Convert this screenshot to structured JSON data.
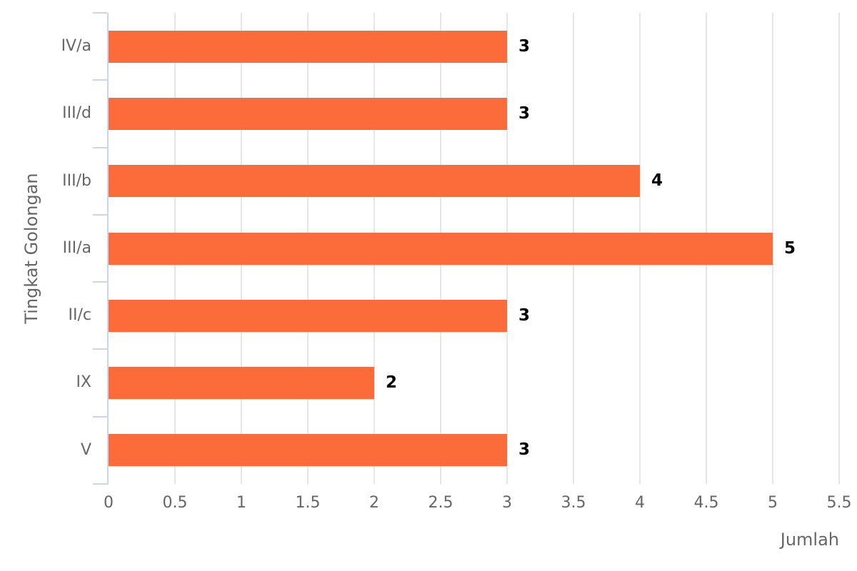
{
  "chart_data": {
    "type": "bar",
    "orientation": "horizontal",
    "title": "",
    "xlabel": "Jumlah",
    "ylabel": "Tingkat Golongan",
    "categories": [
      "IV/a",
      "III/d",
      "III/b",
      "III/a",
      "II/c",
      "IX",
      "V"
    ],
    "values": [
      3,
      3,
      4,
      5,
      3,
      2,
      3
    ],
    "data_labels": [
      "3",
      "3",
      "4",
      "5",
      "3",
      "2",
      "3"
    ],
    "xlim": [
      0,
      5.5
    ],
    "xticks": [
      {
        "value": 0,
        "label": "0"
      },
      {
        "value": 0.5,
        "label": "0.5"
      },
      {
        "value": 1,
        "label": "1"
      },
      {
        "value": 1.5,
        "label": "1.5"
      },
      {
        "value": 2,
        "label": "2"
      },
      {
        "value": 2.5,
        "label": "2.5"
      },
      {
        "value": 3,
        "label": "3"
      },
      {
        "value": 3.5,
        "label": "3.5"
      },
      {
        "value": 4,
        "label": "4"
      },
      {
        "value": 4.5,
        "label": "4.5"
      },
      {
        "value": 5,
        "label": "5"
      },
      {
        "value": 5.5,
        "label": "5.5"
      }
    ],
    "grid": true,
    "legend": false
  },
  "colors": {
    "bar": "#fc6c3b",
    "gridline": "#e6e6e6",
    "axis_line": "#ccd6eb",
    "label_text": "#666666",
    "data_label_text": "#000000",
    "background": "#ffffff"
  }
}
